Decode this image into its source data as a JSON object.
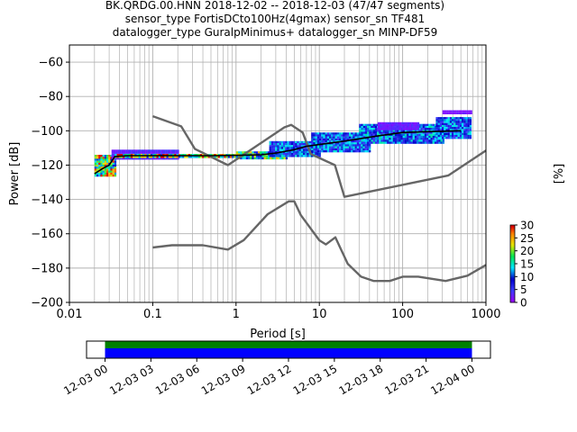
{
  "title": {
    "line1": "BK.QRDG.00.HNN   2018-12-02 -- 2018-12-03  (47/47 segments)",
    "line2": "sensor_type FortisDCto100Hz(4gmax) sensor_sn TF481",
    "line3": "datalogger_type GuralpMinimus+ datalogger_sn MINP-DF59"
  },
  "colorbar": {
    "label": "[%]",
    "ticks": [
      "0",
      "5",
      "10",
      "15",
      "20",
      "25",
      "30"
    ],
    "range": [
      0,
      30
    ]
  },
  "timeline": {
    "tick_labels": [
      "12-03 00",
      "12-03 03",
      "12-03 06",
      "12-03 09",
      "12-03 12",
      "12-03 15",
      "12-03 18",
      "12-03 21",
      "12-04 00"
    ]
  },
  "colors": {
    "grid": "#b0b0b0",
    "noise_model": "#666666",
    "mean_line": "#000000",
    "timeline_green": "#008000",
    "timeline_blue": "#0000ff"
  },
  "chart_data": {
    "type": "heatmap",
    "subtype": "probabilistic power spectral density",
    "xlabel": "Period [s]",
    "ylabel": "Power [dB]",
    "xscale": "log",
    "xlim": [
      0.01,
      1000
    ],
    "ylim": [
      -200,
      -50
    ],
    "grid": true,
    "x_tick_labels": [
      "0.01",
      "0.1",
      "1",
      "10",
      "100",
      "1000"
    ],
    "y_tick_labels": [
      "−60",
      "−80",
      "−100",
      "−120",
      "−140",
      "−160",
      "−180",
      "−200"
    ],
    "x_ticks": [
      0.01,
      0.1,
      1,
      10,
      100,
      1000
    ],
    "y_ticks": [
      -60,
      -80,
      -100,
      -120,
      -140,
      -160,
      -180,
      -200
    ],
    "series": [
      {
        "role": "high noise model",
        "x": [
          0.1,
          0.22,
          0.32,
          0.8,
          3.8,
          4.6,
          6.3,
          7.9,
          15.4,
          20,
          354.8,
          1000
        ],
        "y": [
          -91.5,
          -97.4,
          -110.5,
          -120,
          -98,
          -96.5,
          -101,
          -113.5,
          -120,
          -138.5,
          -126,
          -111.5
        ]
      },
      {
        "role": "low noise model",
        "x": [
          0.1,
          0.17,
          0.4,
          0.8,
          1.24,
          2.4,
          4.3,
          5,
          6,
          10,
          12,
          15.6,
          21.9,
          31.6,
          45,
          70,
          101,
          154,
          328,
          600,
          1000
        ],
        "y": [
          -168,
          -166.7,
          -166.7,
          -169.2,
          -163.7,
          -148.6,
          -141.1,
          -141.1,
          -149.2,
          -163.8,
          -166.2,
          -162.1,
          -177.5,
          -185,
          -187.5,
          -187.5,
          -185,
          -185,
          -187.5,
          -184.4,
          -178.2
        ]
      },
      {
        "role": "mean",
        "x": [
          0.02,
          0.025,
          0.03,
          0.035,
          0.05,
          0.1,
          0.2,
          0.5,
          1,
          2,
          3,
          5,
          7,
          10,
          20,
          50,
          100,
          200,
          500
        ],
        "y": [
          -125,
          -122,
          -120,
          -115,
          -114.5,
          -114.5,
          -114.5,
          -114.5,
          -114.3,
          -114,
          -113,
          -111,
          -109,
          -108,
          -106,
          -103,
          -101,
          -100.5,
          -100
        ]
      }
    ],
    "density": [
      {
        "x0": 0.02,
        "x1": 0.035,
        "y0": -126,
        "y1": -114,
        "pct": 25
      },
      {
        "x0": 0.032,
        "x1": 0.2,
        "y0": -116,
        "y1": -111,
        "pct": 4
      },
      {
        "x0": 0.035,
        "x1": 1.2,
        "y0": -115.5,
        "y1": -113.5,
        "pct": 28
      },
      {
        "x0": 1,
        "x1": 4,
        "y0": -116,
        "y1": -112,
        "pct": 20
      },
      {
        "x0": 2.5,
        "x1": 10,
        "y0": -115,
        "y1": -106,
        "pct": 12
      },
      {
        "x0": 8,
        "x1": 40,
        "y0": -112,
        "y1": -101,
        "pct": 12
      },
      {
        "x0": 30,
        "x1": 300,
        "y0": -107,
        "y1": -96,
        "pct": 13
      },
      {
        "x0": 250,
        "x1": 650,
        "y0": -104,
        "y1": -92,
        "pct": 12
      },
      {
        "x0": 50,
        "x1": 150,
        "y0": -99,
        "y1": -95,
        "pct": 3
      },
      {
        "x0": 300,
        "x1": 650,
        "y0": -90,
        "y1": -88,
        "pct": 2
      }
    ]
  }
}
